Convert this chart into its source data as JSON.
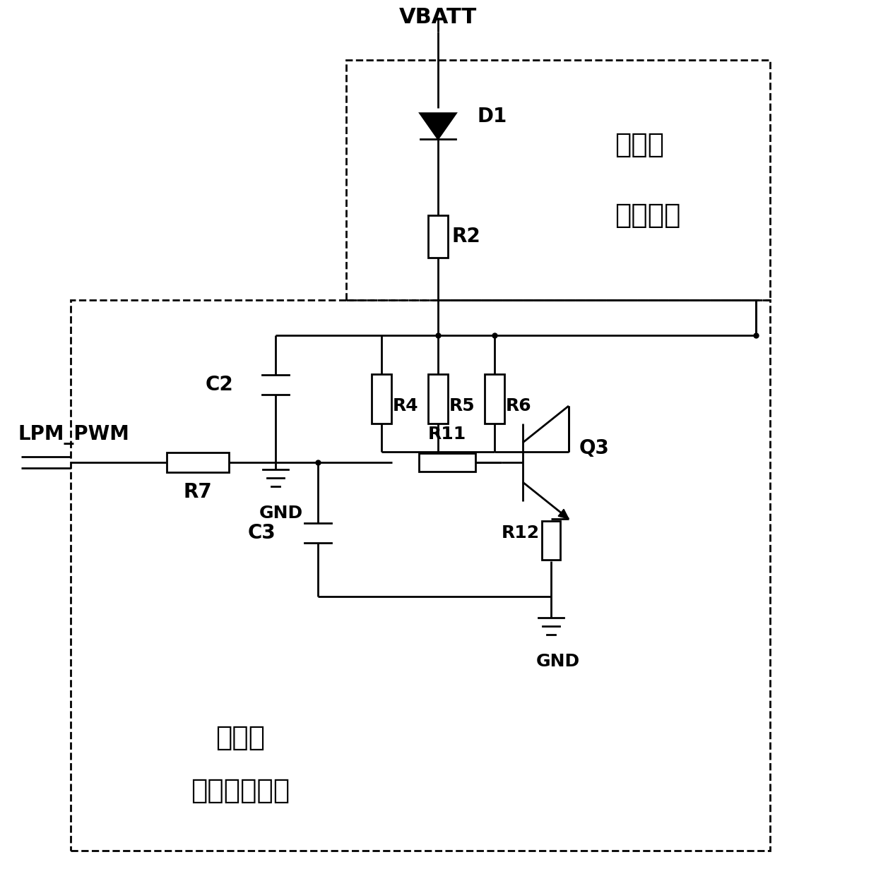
{
  "bg_color": "#ffffff",
  "line_color": "#000000",
  "text_color": "#000000",
  "vbatt_label": "VBATT",
  "d1_label": "D1",
  "r2_label": "R2",
  "r4_label": "R4",
  "r5_label": "R5",
  "r6_label": "R6",
  "r7_label": "R7",
  "r11_label": "R11",
  "r12_label": "R12",
  "c2_label": "C2",
  "c3_label": "C3",
  "q3_label": "Q3",
  "gnd_label1": "GND",
  "gnd_label2": "GND",
  "lpm_pwm_label": "LPM_PWM",
  "box1_line1": "鼓风机",
  "box1_line2": "负载电路",
  "box2_line1": "鼓风机",
  "box2_line2": "低边控制电路",
  "lw": 2.0
}
